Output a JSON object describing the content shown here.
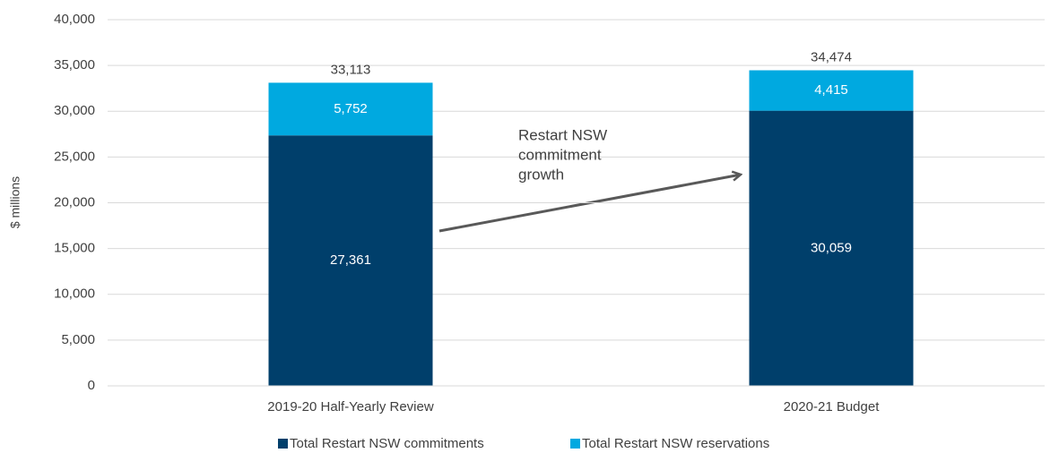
{
  "chart_data": {
    "type": "stacked_bar",
    "ylabel": "$ millions",
    "categories": [
      "2019-20 Half-Yearly Review",
      "2020-21 Budget"
    ],
    "series": [
      {
        "name": "Total Restart NSW commitments",
        "color": "#003f6b",
        "values": [
          27361,
          30059
        ],
        "value_labels": [
          "27,361",
          "30,059"
        ]
      },
      {
        "name": "Total Restart NSW reservations",
        "color": "#00a9e0",
        "values": [
          5752,
          4415
        ],
        "value_labels": [
          "5,752",
          "4,415"
        ]
      }
    ],
    "totals": {
      "values": [
        33113,
        34474
      ],
      "value_labels": [
        "33,113",
        "34,474"
      ]
    },
    "annotation": [
      "Restart NSW",
      "commitment",
      "growth"
    ],
    "ylim": [
      0,
      40000
    ],
    "yticks": [
      0,
      {
        "value": 5000,
        "label": "5,000"
      },
      {
        "value": 10000,
        "label": "10,000"
      },
      {
        "value": 15000,
        "label": "15,000"
      },
      {
        "value": 20000,
        "label": "20,000"
      },
      {
        "value": 25000,
        "label": "25,000"
      },
      {
        "value": 30000,
        "label": "30,000"
      },
      {
        "value": 35000,
        "label": "35,000"
      },
      {
        "value": 40000,
        "label": "40,000"
      }
    ],
    "grid": true,
    "legend": "bottom"
  }
}
